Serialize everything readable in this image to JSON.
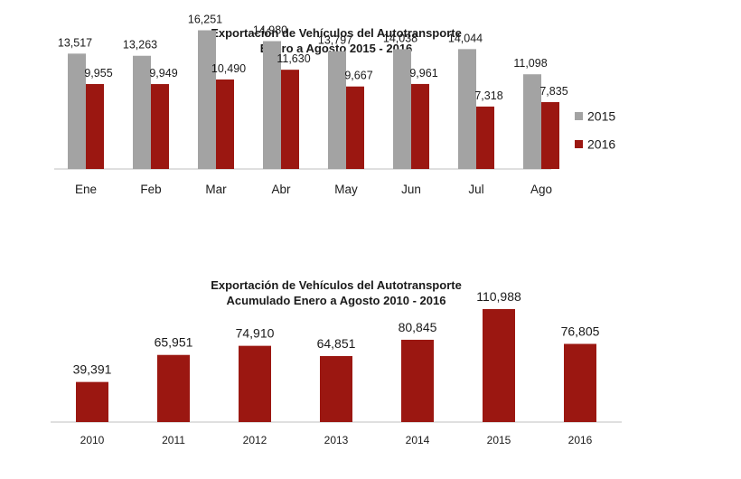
{
  "colors": {
    "series_2015": "#a3a3a3",
    "series_2016": "#9b1711",
    "axis": "#bfbfbf"
  },
  "chart_data": [
    {
      "type": "bar",
      "title": "Exportación de Vehículos del Autotransporte",
      "subtitle": "Enero a Agosto 2015 - 2016",
      "categories": [
        "Ene",
        "Feb",
        "Mar",
        "Abr",
        "May",
        "Jun",
        "Jul",
        "Ago"
      ],
      "series": [
        {
          "name": "2015",
          "values": [
            13517,
            13263,
            16251,
            14980,
            13797,
            14038,
            14044,
            11098
          ],
          "labels": [
            "13,517",
            "13,263",
            "16,251",
            "14,980",
            "13,797",
            "14,038",
            "14,044",
            "11,098"
          ]
        },
        {
          "name": "2016",
          "values": [
            9955,
            9949,
            10490,
            11630,
            9667,
            9961,
            7318,
            7835
          ],
          "labels": [
            "9,955",
            "9,949",
            "10,490",
            "11,630",
            "9,667",
            "9,961",
            "7,318",
            "7,835"
          ]
        }
      ],
      "ylim": [
        0,
        18000
      ],
      "grid": false,
      "legend": "right"
    },
    {
      "type": "bar",
      "title": "Exportación de Vehículos del Autotransporte",
      "subtitle": "Acumulado Enero a Agosto 2010 - 2016",
      "categories": [
        "2010",
        "2011",
        "2012",
        "2013",
        "2014",
        "2015",
        "2016"
      ],
      "values": [
        39391,
        65951,
        74910,
        64851,
        80845,
        110988,
        76805
      ],
      "labels": [
        "39,391",
        "65,951",
        "74,910",
        "64,851",
        "80,845",
        "110,988",
        "76,805"
      ],
      "ylim": [
        0,
        130000
      ],
      "grid": false,
      "legend": "none"
    }
  ]
}
